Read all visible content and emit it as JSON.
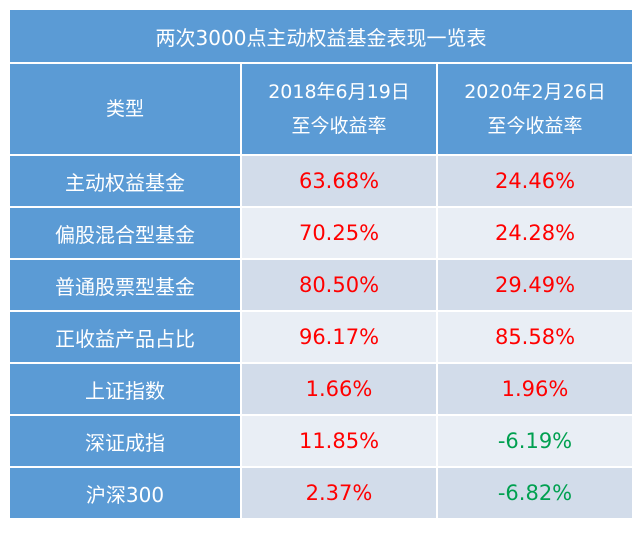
{
  "table": {
    "title": "两次3000点主动权益基金表现一览表",
    "header": {
      "type_label": "类型",
      "col1_line1": "2018年6月19日",
      "col1_line2": "至今收益率",
      "col2_line1": "2020年2月26日",
      "col2_line2": "至今收益率"
    },
    "rows": [
      {
        "label": "主动权益基金",
        "v1": "63.68%",
        "v2": "24.46%"
      },
      {
        "label": "偏股混合型基金",
        "v1": "70.25%",
        "v2": "24.28%"
      },
      {
        "label": "普通股票型基金",
        "v1": "80.50%",
        "v2": "29.49%"
      },
      {
        "label": "正收益产品占比",
        "v1": "96.17%",
        "v2": "85.58%"
      },
      {
        "label": "上证指数",
        "v1": "1.66%",
        "v2": "1.96%"
      },
      {
        "label": "深证成指",
        "v1": "11.85%",
        "v2": "-6.19%"
      },
      {
        "label": "沪深300",
        "v1": "2.37%",
        "v2": "-6.82%"
      }
    ]
  },
  "colors": {
    "header_bg": "#5b9bd5",
    "row_odd_bg": "#d2dcea",
    "row_even_bg": "#e9eef5",
    "positive": "#ff0000",
    "negative": "#00a050"
  }
}
